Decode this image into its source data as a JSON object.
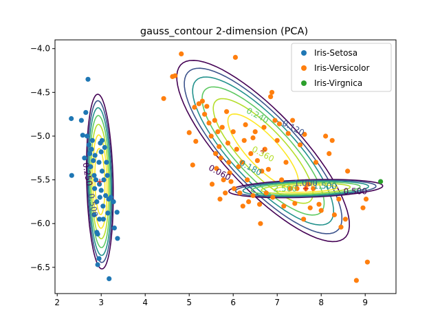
{
  "chart_data": {
    "type": "scatter",
    "title": "gauss_contour 2-dimension (PCA)",
    "xlabel": "",
    "ylabel": "",
    "xlim": [
      1.95,
      9.7
    ],
    "ylim": [
      -6.8,
      -3.9
    ],
    "xticks": [
      2,
      3,
      4,
      5,
      6,
      7,
      8,
      9
    ],
    "yticks": [
      -4.0,
      -4.5,
      -5.0,
      -5.5,
      -6.0,
      -6.5
    ],
    "xtick_labels": [
      "2",
      "3",
      "4",
      "5",
      "6",
      "7",
      "8",
      "9"
    ],
    "ytick_labels": [
      "−4.0",
      "−4.5",
      "−5.0",
      "−5.5",
      "−6.0",
      "−6.5"
    ],
    "grid": false,
    "legend_position": "top-right",
    "series": [
      {
        "name": "Iris-Setosa",
        "color": "#1f77b4",
        "points": [
          [
            2.32,
            -4.8
          ],
          [
            2.33,
            -5.45
          ],
          [
            2.55,
            -4.82
          ],
          [
            2.58,
            -4.99
          ],
          [
            2.62,
            -5.25
          ],
          [
            2.65,
            -4.73
          ],
          [
            2.7,
            -4.35
          ],
          [
            2.68,
            -5.0
          ],
          [
            2.72,
            -5.1
          ],
          [
            2.74,
            -5.2
          ],
          [
            2.76,
            -5.35
          ],
          [
            2.78,
            -5.15
          ],
          [
            2.8,
            -5.05
          ],
          [
            2.82,
            -5.28
          ],
          [
            2.84,
            -5.45
          ],
          [
            2.85,
            -5.6
          ],
          [
            2.86,
            -5.22
          ],
          [
            2.88,
            -5.5
          ],
          [
            2.9,
            -5.75
          ],
          [
            2.9,
            -6.1
          ],
          [
            2.92,
            -6.12
          ],
          [
            2.92,
            -6.47
          ],
          [
            2.95,
            -6.4
          ],
          [
            2.95,
            -5.3
          ],
          [
            2.96,
            -5.95
          ],
          [
            2.97,
            -5.7
          ],
          [
            2.98,
            -5.08
          ],
          [
            3.0,
            -5.18
          ],
          [
            3.0,
            -5.62
          ],
          [
            3.02,
            -5.4
          ],
          [
            3.04,
            -5.8
          ],
          [
            3.05,
            -5.95
          ],
          [
            3.06,
            -5.5
          ],
          [
            3.08,
            -5.13
          ],
          [
            3.1,
            -5.68
          ],
          [
            3.12,
            -5.3
          ],
          [
            3.14,
            -5.45
          ],
          [
            3.15,
            -5.88
          ],
          [
            3.17,
            -5.72
          ],
          [
            3.18,
            -6.63
          ],
          [
            3.22,
            -5.7
          ],
          [
            3.28,
            -5.75
          ],
          [
            3.3,
            -6.05
          ],
          [
            3.36,
            -5.87
          ],
          [
            3.37,
            -6.17
          ],
          [
            3.02,
            -5.05
          ],
          [
            2.84,
            -5.9
          ],
          [
            2.96,
            -5.55
          ]
        ]
      },
      {
        "name": "Iris-Versicolor",
        "color": "#ff7f0e",
        "points": [
          [
            4.42,
            -4.57
          ],
          [
            4.62,
            -4.32
          ],
          [
            4.68,
            -4.31
          ],
          [
            4.82,
            -4.06
          ],
          [
            5.0,
            -4.96
          ],
          [
            5.08,
            -5.33
          ],
          [
            5.12,
            -4.67
          ],
          [
            5.15,
            -5.06
          ],
          [
            5.22,
            -4.63
          ],
          [
            5.3,
            -4.6
          ],
          [
            5.35,
            -4.75
          ],
          [
            5.4,
            -4.66
          ],
          [
            5.45,
            -4.85
          ],
          [
            5.5,
            -5.0
          ],
          [
            5.52,
            -5.55
          ],
          [
            5.58,
            -4.82
          ],
          [
            5.6,
            -5.2
          ],
          [
            5.62,
            -5.37
          ],
          [
            5.65,
            -4.95
          ],
          [
            5.68,
            -5.12
          ],
          [
            5.7,
            -5.72
          ],
          [
            5.72,
            -5.25
          ],
          [
            5.75,
            -4.9
          ],
          [
            5.78,
            -5.5
          ],
          [
            5.82,
            -5.65
          ],
          [
            5.85,
            -4.72
          ],
          [
            5.88,
            -5.08
          ],
          [
            5.9,
            -5.3
          ],
          [
            5.92,
            -5.42
          ],
          [
            6.0,
            -4.95
          ],
          [
            6.02,
            -5.6
          ],
          [
            6.05,
            -4.1
          ],
          [
            6.08,
            -5.15
          ],
          [
            6.12,
            -5.35
          ],
          [
            6.15,
            -5.65
          ],
          [
            6.2,
            -5.3
          ],
          [
            6.22,
            -5.8
          ],
          [
            6.25,
            -5.05
          ],
          [
            6.28,
            -4.87
          ],
          [
            6.32,
            -5.5
          ],
          [
            6.35,
            -5.75
          ],
          [
            6.4,
            -5.2
          ],
          [
            6.45,
            -5.68
          ],
          [
            6.5,
            -4.95
          ],
          [
            6.55,
            -5.28
          ],
          [
            6.6,
            -5.78
          ],
          [
            6.62,
            -6.0
          ],
          [
            6.65,
            -5.4
          ],
          [
            6.7,
            -4.9
          ],
          [
            6.72,
            -5.15
          ],
          [
            6.75,
            -5.65
          ],
          [
            6.8,
            -5.38
          ],
          [
            6.85,
            -4.55
          ],
          [
            6.88,
            -4.5
          ],
          [
            6.9,
            -5.7
          ],
          [
            6.95,
            -4.82
          ],
          [
            7.0,
            -5.05
          ],
          [
            7.05,
            -4.86
          ],
          [
            7.1,
            -5.5
          ],
          [
            7.15,
            -5.8
          ],
          [
            7.2,
            -5.3
          ],
          [
            7.25,
            -4.97
          ],
          [
            7.3,
            -5.6
          ],
          [
            7.35,
            -4.82
          ],
          [
            7.4,
            -5.77
          ],
          [
            7.45,
            -5.6
          ],
          [
            7.52,
            -5.1
          ],
          [
            7.6,
            -5.95
          ],
          [
            7.62,
            -4.98
          ],
          [
            7.65,
            -5.6
          ],
          [
            7.7,
            -5.55
          ],
          [
            7.75,
            -5.82
          ],
          [
            7.82,
            -5.6
          ],
          [
            7.88,
            -5.3
          ],
          [
            7.95,
            -5.78
          ],
          [
            8.0,
            -5.85
          ],
          [
            8.1,
            -5.0
          ],
          [
            8.18,
            -5.2
          ],
          [
            8.25,
            -5.05
          ],
          [
            8.3,
            -5.9
          ],
          [
            8.4,
            -5.72
          ],
          [
            8.45,
            -6.04
          ],
          [
            8.55,
            -5.95
          ],
          [
            8.6,
            -5.4
          ],
          [
            8.8,
            -6.65
          ],
          [
            8.95,
            -5.82
          ],
          [
            9.02,
            -5.72
          ],
          [
            9.05,
            -6.44
          ],
          [
            5.95,
            -5.52
          ],
          [
            6.45,
            -5.02
          ]
        ]
      },
      {
        "name": "Iris-Virgnica",
        "color": "#2ca02c",
        "points": [
          [
            9.35,
            -5.52
          ]
        ]
      }
    ],
    "means": [
      [
        2.97,
        -5.52
      ],
      [
        6.68,
        -5.17
      ],
      [
        7.65,
        -5.6
      ]
    ],
    "contours": [
      {
        "class": "Iris-Setosa",
        "center": [
          2.97,
          -5.52
        ],
        "major_radius": 1.0,
        "minor_radius": 0.3,
        "angle_deg": -87,
        "levels": [
          0.25,
          0.5,
          1.0,
          1.5,
          2.0,
          2.5,
          3.0
        ],
        "labels": [
          "0.250",
          "0.500"
        ]
      },
      {
        "class": "Iris-Versicolor",
        "center": [
          6.68,
          -5.17
        ],
        "major_radius": 2.15,
        "minor_radius": 0.55,
        "angle_deg": -25,
        "levels": [
          0.06,
          0.12,
          0.18,
          0.24,
          0.3,
          0.36
        ],
        "labels": [
          "0.060",
          "0.120",
          "0.180",
          "0.240",
          "0.360"
        ]
      },
      {
        "class": "Iris-Virgnica",
        "center": [
          7.65,
          -5.6
        ],
        "major_radius": 1.75,
        "minor_radius": 0.1,
        "angle_deg": 1,
        "levels": [
          0.5,
          1.0,
          1.5,
          2.0,
          2.5,
          3.0
        ],
        "labels": [
          "0.500",
          "1.000",
          "1.500",
          "2.500"
        ]
      }
    ],
    "level_colors": [
      "#440154",
      "#3b528b",
      "#21918c",
      "#5ec962",
      "#b5de2b",
      "#fde725",
      "#fde725"
    ]
  },
  "legend": {
    "items": [
      {
        "label": "Iris-Setosa",
        "color": "#1f77b4"
      },
      {
        "label": "Iris-Versicolor",
        "color": "#ff7f0e"
      },
      {
        "label": "Iris-Virgnica",
        "color": "#2ca02c"
      }
    ]
  }
}
